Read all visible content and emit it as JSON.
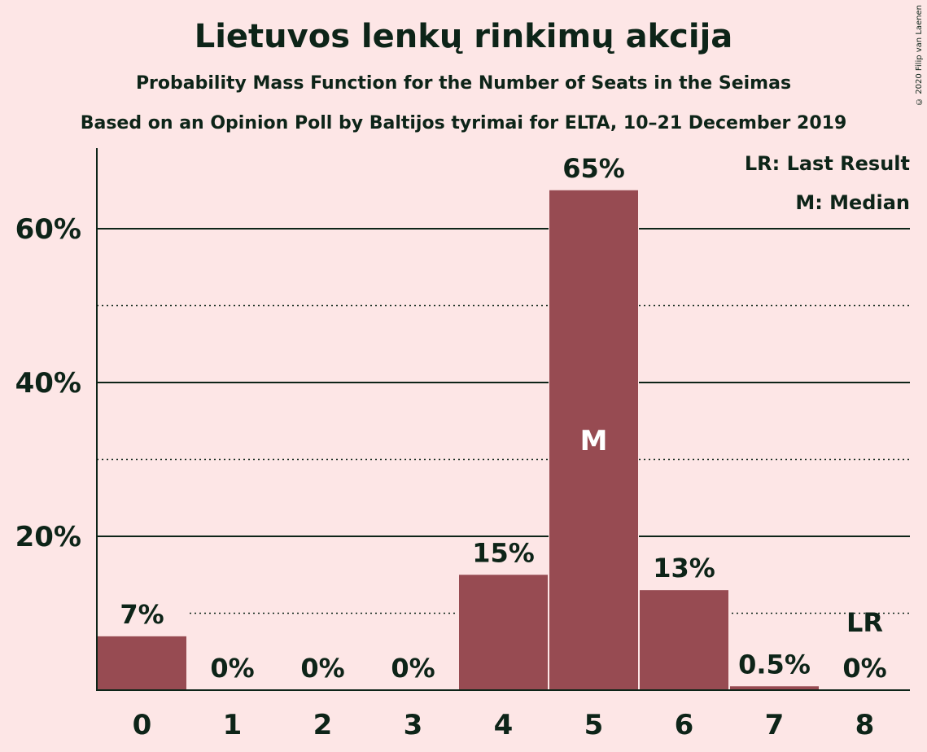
{
  "header": {
    "title": "Lietuvos lenkų rinkimų akcija",
    "subtitle": "Probability Mass Function for the Number of Seats in the Seimas",
    "source_line": "Based on an Opinion Poll by Baltijos tyrimai for ELTA, 10–21 December 2019",
    "copyright": "© 2020 Filip van Laenen"
  },
  "legend": {
    "last_result": "LR: Last Result",
    "median": "M: Median"
  },
  "colors": {
    "background": "#fde6e6",
    "bar": "#974b52",
    "text": "#0d2418"
  },
  "chart_data": {
    "type": "bar",
    "categories": [
      "0",
      "1",
      "2",
      "3",
      "4",
      "5",
      "6",
      "7",
      "8"
    ],
    "values": [
      7,
      0,
      0,
      0,
      15,
      65,
      13,
      0.5,
      0
    ],
    "value_labels": [
      "7%",
      "0%",
      "0%",
      "0%",
      "15%",
      "65%",
      "13%",
      "0.5%",
      "0%"
    ],
    "ylim": [
      0,
      70
    ],
    "yticks": [
      20,
      40,
      60
    ],
    "ytick_labels": [
      "20%",
      "40%",
      "60%"
    ],
    "minor_gridlines": [
      10,
      30,
      50
    ],
    "median_category": "5",
    "median_marker": "M",
    "last_result_category": "8",
    "last_result_marker": "LR",
    "legend_position": "top-right"
  }
}
